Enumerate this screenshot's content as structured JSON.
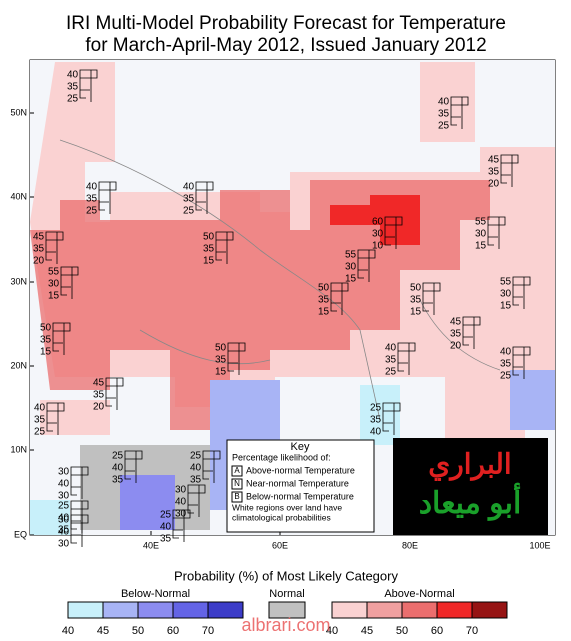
{
  "header": {
    "title_line1": "IRI Multi-Model Probability Forecast for Temperature",
    "title_line2": "for March-April-May 2012, Issued January 2012"
  },
  "lat_labels": [
    "50N",
    "40N",
    "30N",
    "20N",
    "10N",
    "EQ"
  ],
  "lon_labels": [
    "40E",
    "60E",
    "80E",
    "100E"
  ],
  "annotations": [
    [
      40,
      35,
      25
    ],
    [
      40,
      35,
      25
    ],
    [
      45,
      35,
      20
    ],
    [
      40,
      35,
      25
    ],
    [
      40,
      35,
      25
    ],
    [
      45,
      35,
      20
    ],
    [
      50,
      35,
      15
    ],
    [
      60,
      30,
      10
    ],
    [
      55,
      30,
      15
    ],
    [
      55,
      30,
      15
    ],
    [
      55,
      30,
      15
    ],
    [
      55,
      30,
      15
    ],
    [
      50,
      35,
      15
    ],
    [
      50,
      35,
      15
    ],
    [
      45,
      35,
      20
    ],
    [
      50,
      35,
      15
    ],
    [
      50,
      35,
      15
    ],
    [
      40,
      35,
      25
    ],
    [
      40,
      35,
      25
    ],
    [
      45,
      35,
      20
    ],
    [
      40,
      35,
      25
    ],
    [
      25,
      35,
      40
    ],
    [
      25,
      40,
      35
    ],
    [
      25,
      40,
      35
    ],
    [
      30,
      40,
      30
    ],
    [
      30,
      40,
      30
    ],
    [
      25,
      40,
      35
    ],
    [
      25,
      40,
      35
    ],
    [
      30,
      40,
      30
    ]
  ],
  "key": {
    "title": "Key",
    "subtitle": "Percentage likelihood of:",
    "items": [
      {
        "letter": "A",
        "text": "Above-normal Temperature"
      },
      {
        "letter": "N",
        "text": "Near-normal Temperature"
      },
      {
        "letter": "B",
        "text": "Below-normal Temperature"
      }
    ],
    "note_line1": "White regions over land have",
    "note_line2": "climatological probabilities"
  },
  "colorbar": {
    "title": "Probability (%) of Most Likely Category",
    "below": {
      "label": "Below-Normal",
      "ticks": [
        40,
        45,
        50,
        60,
        70
      ],
      "colors": [
        "#c8f0fa",
        "#a8b4f5",
        "#8c8cf0",
        "#6464e6",
        "#3c3cc8"
      ]
    },
    "normal": {
      "label": "Normal",
      "color": "#c0c0c0"
    },
    "above": {
      "label": "Above-Normal",
      "ticks": [
        40,
        45,
        50,
        60,
        70
      ],
      "colors": [
        "#fad2d2",
        "#f0a0a0",
        "#eb6e6e",
        "#f02828",
        "#961414"
      ]
    }
  },
  "logo": {
    "line1": "البراري",
    "line2": "أبو ميعاد"
  },
  "watermark": "albrari.com"
}
